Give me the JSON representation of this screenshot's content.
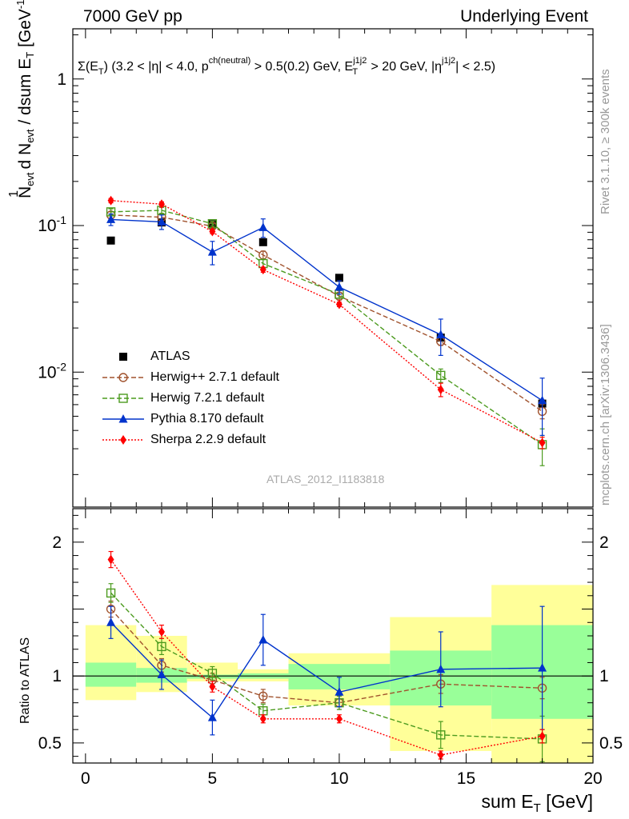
{
  "header": {
    "left": "7000 GeV pp",
    "right": "Underlying Event"
  },
  "side_labels": {
    "rivet": "Rivet 3.1.10, ≥ 300k events",
    "mcplots": "mcplots.cern.ch [arXiv:1306.3436]"
  },
  "watermark": "ATLAS_2012_I1183818",
  "colors": {
    "atlas": "#000000",
    "herwigpp": "#a0522d",
    "herwig7": "#4c9b1f",
    "pythia": "#0033cc",
    "sherpa": "#ff0000",
    "band_inner": "#99ff99",
    "band_outer": "#ffff99"
  },
  "chart_data": [
    {
      "type": "scatter",
      "panel": "main",
      "title": "Σ(E_T) (3.2 < |η| < 4.0, p^ch(neutral) > 0.5(0.2) GeV, E_T^j1j2 > 20 GeV, |η^j1j2| < 2.5)",
      "xlabel": "sum E_T [GeV]",
      "ylabel": "1/N_evt dN_evt/dsum E_T [GeV^-1]",
      "yscale": "log",
      "xlim": [
        -0.5,
        20
      ],
      "ylim": [
        0.0012,
        2.2
      ],
      "y_ticks": [
        "10^-2",
        "10^-1",
        "1"
      ],
      "x": [
        1,
        3,
        5,
        7,
        10,
        14,
        18
      ],
      "series": [
        {
          "name": "ATLAS",
          "style": "data",
          "values": [
            0.079,
            0.105,
            0.102,
            0.077,
            0.044,
            0.0172,
            0.0061
          ]
        },
        {
          "name": "Herwig++ 2.7.1 default",
          "style": "herwigpp",
          "values": [
            0.118,
            0.114,
            0.099,
            0.063,
            0.033,
            0.0162,
            0.0054
          ],
          "err": [
            0.006,
            0.005,
            0.004,
            0.004,
            0.002,
            0.001,
            0.0006
          ]
        },
        {
          "name": "Herwig 7.2.1 default",
          "style": "herwig7",
          "values": [
            0.124,
            0.127,
            0.103,
            0.055,
            0.034,
            0.0095,
            0.0032
          ],
          "err": [
            0.006,
            0.006,
            0.004,
            0.004,
            0.002,
            0.001,
            0.0009
          ]
        },
        {
          "name": "Pythia 8.170 default",
          "style": "pythia",
          "values": [
            0.11,
            0.106,
            0.066,
            0.097,
            0.038,
            0.018,
            0.0064
          ],
          "err": [
            0.01,
            0.012,
            0.012,
            0.014,
            0.004,
            0.005,
            0.0027
          ]
        },
        {
          "name": "Sherpa 2.2.9 default",
          "style": "sherpa",
          "values": [
            0.148,
            0.14,
            0.091,
            0.05,
            0.029,
            0.0076,
            0.0033
          ],
          "err": [
            0.005,
            0.005,
            0.003,
            0.002,
            0.001,
            0.0008,
            0.0003
          ]
        }
      ]
    },
    {
      "type": "scatter",
      "panel": "ratio",
      "ylabel": "Ratio to ATLAS",
      "xlabel": "sum E_T [GeV]",
      "xlim": [
        -0.5,
        20
      ],
      "ylim": [
        0.35,
        2.25
      ],
      "y_ticks": [
        0.5,
        1,
        2
      ],
      "x_ticks": [
        0,
        5,
        10,
        15,
        20
      ],
      "bins": [
        [
          0,
          2
        ],
        [
          2,
          4
        ],
        [
          4,
          6
        ],
        [
          6,
          8
        ],
        [
          8,
          12
        ],
        [
          12,
          16
        ],
        [
          16,
          20
        ]
      ],
      "band_inner": [
        [
          0.92,
          1.1
        ],
        [
          0.95,
          1.06
        ],
        [
          0.98,
          1.01
        ],
        [
          0.98,
          1.02
        ],
        [
          0.9,
          1.09
        ],
        [
          0.78,
          1.19
        ],
        [
          0.68,
          1.38
        ]
      ],
      "band_outer": [
        [
          0.82,
          1.38
        ],
        [
          0.88,
          1.3
        ],
        [
          0.96,
          1.1
        ],
        [
          0.96,
          1.05
        ],
        [
          0.78,
          1.17
        ],
        [
          0.44,
          1.44
        ],
        [
          0.3,
          1.68
        ]
      ],
      "x": [
        1,
        3,
        5,
        7,
        10,
        14,
        18
      ],
      "series": [
        {
          "name": "Herwig++ 2.7.1 default",
          "style": "herwigpp",
          "values": [
            1.5,
            1.08,
            0.97,
            0.85,
            0.8,
            0.94,
            0.91
          ],
          "err": [
            0.06,
            0.05,
            0.05,
            0.05,
            0.05,
            0.07,
            0.08
          ]
        },
        {
          "name": "Herwig 7.2.1 default",
          "style": "herwig7",
          "values": [
            1.62,
            1.22,
            1.02,
            0.74,
            0.8,
            0.56,
            0.53
          ],
          "err": [
            0.07,
            0.06,
            0.05,
            0.05,
            0.05,
            0.1,
            0.17
          ]
        },
        {
          "name": "Pythia 8.170 default",
          "style": "pythia",
          "values": [
            1.4,
            1.01,
            0.69,
            1.27,
            0.88,
            1.05,
            1.06
          ],
          "err": [
            0.12,
            0.11,
            0.13,
            0.19,
            0.11,
            0.28,
            0.46
          ]
        },
        {
          "name": "Sherpa 2.2.9 default",
          "style": "sherpa",
          "values": [
            1.87,
            1.33,
            0.92,
            0.68,
            0.68,
            0.41,
            0.55
          ],
          "err": [
            0.06,
            0.05,
            0.04,
            0.03,
            0.03,
            0.03,
            0.05
          ]
        }
      ]
    }
  ]
}
